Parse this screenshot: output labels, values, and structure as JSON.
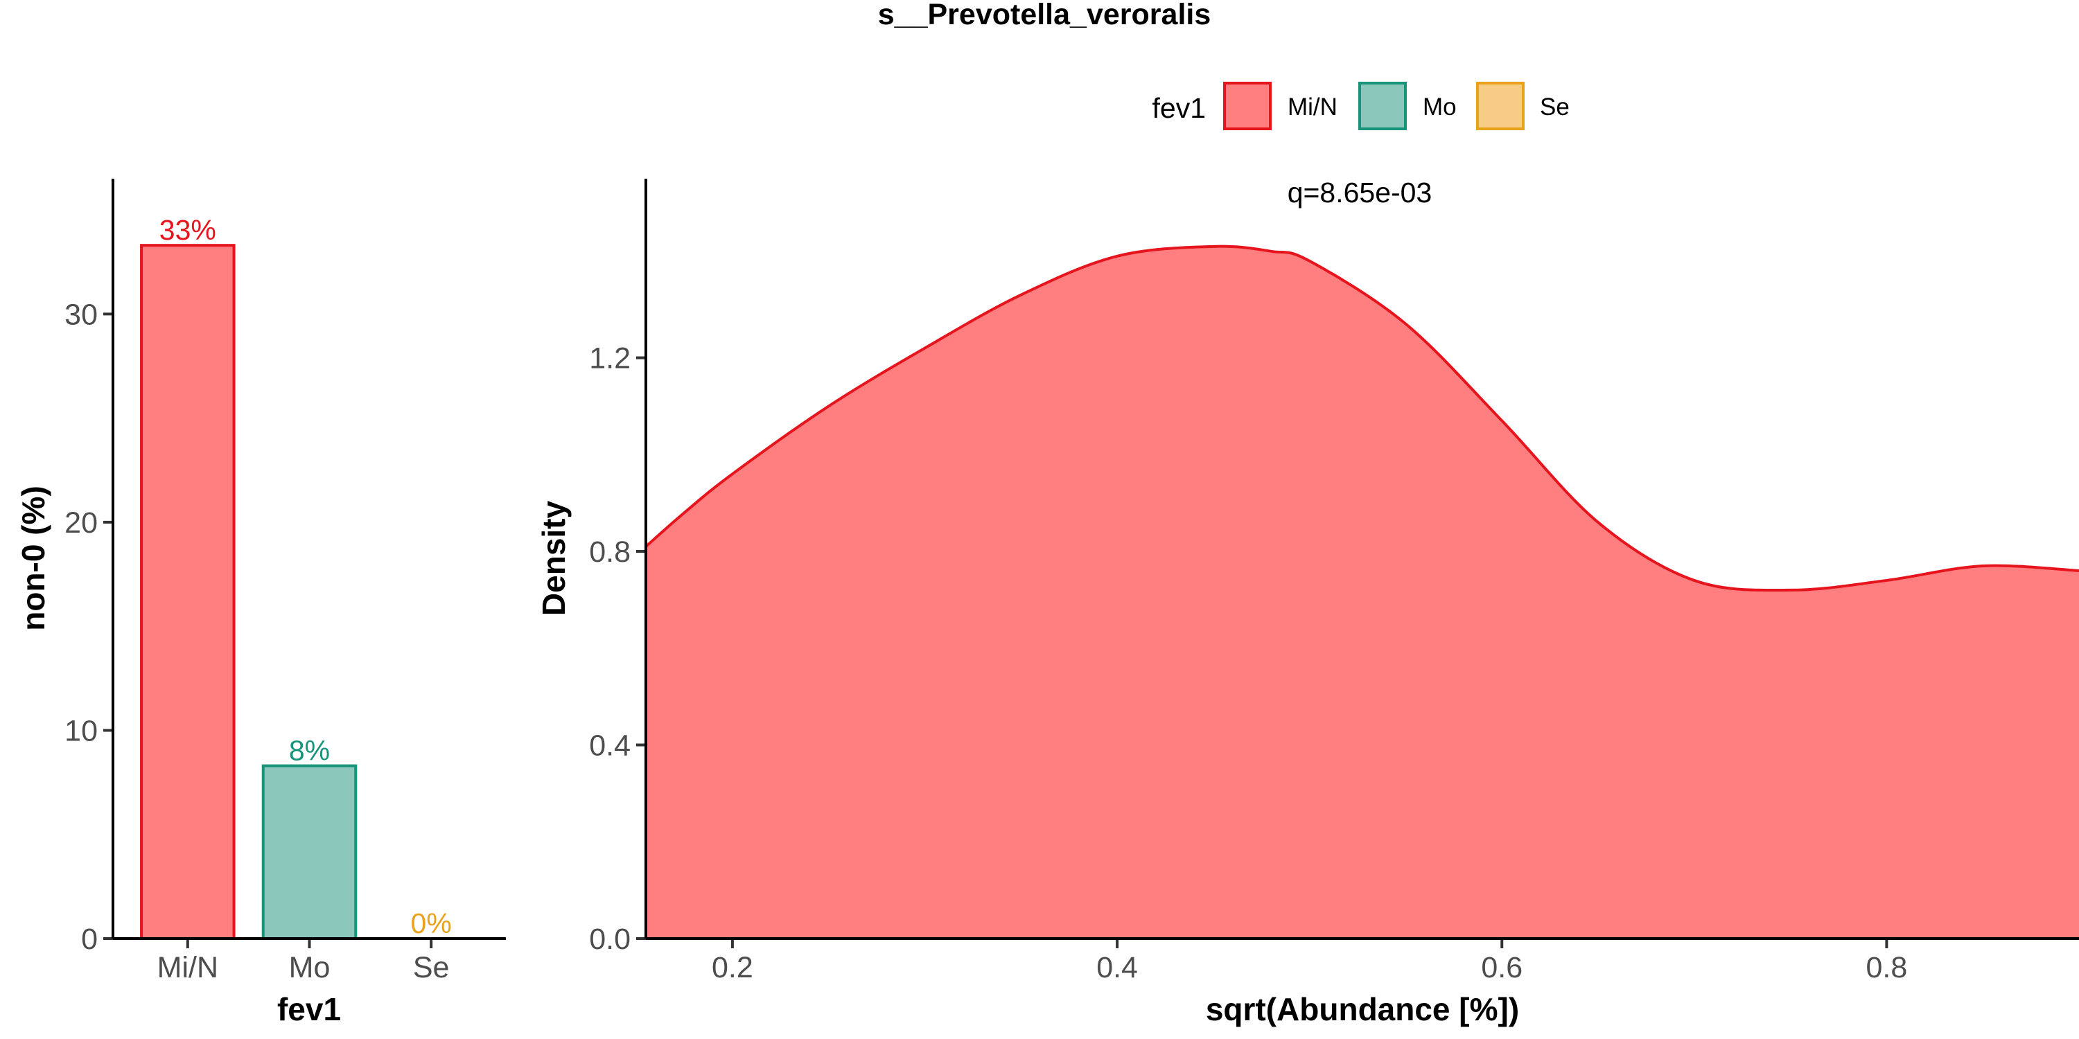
{
  "figure": {
    "title": "s__Prevotella_veroralis"
  },
  "legend": {
    "title": "fev1",
    "placement": "top",
    "items": [
      {
        "label": "Mi/N",
        "fill": "#ff7f81",
        "stroke": "#e6141c"
      },
      {
        "label": "Mo",
        "fill": "#8bc8bb",
        "stroke": "#17947a"
      },
      {
        "label": "Se",
        "fill": "#f7cc85",
        "stroke": "#e8a21c"
      }
    ]
  },
  "chart_data": [
    {
      "type": "bar",
      "xlabel": "fev1",
      "ylabel": "non-0 (%)",
      "categories": [
        "Mi/N",
        "Mo",
        "Se"
      ],
      "values": [
        33.3,
        8.3,
        0
      ],
      "labels": [
        "33%",
        "8%",
        "0%"
      ],
      "ylim": [
        0,
        36.5
      ],
      "yticks": [
        0,
        10,
        20,
        30
      ],
      "ytick_labels": [
        "0",
        "10",
        "20",
        "30"
      ],
      "colors": {
        "fill": [
          "#ff7f81",
          "#8bc8bb",
          "#f7cc85"
        ],
        "stroke": [
          "#e6141c",
          "#17947a",
          "#e8a21c"
        ]
      },
      "grid": false
    },
    {
      "type": "area",
      "xlabel": "sqrt(Abundance [%])",
      "ylabel": "Density",
      "annotation": "q=8.65e-03",
      "xlim": [
        0.155,
        0.9
      ],
      "ylim": [
        0,
        1.57
      ],
      "xticks": [
        0.2,
        0.4,
        0.6,
        0.8
      ],
      "xtick_labels": [
        "0.2",
        "0.4",
        "0.6",
        "0.8"
      ],
      "yticks": [
        0,
        0.4,
        0.8,
        1.2
      ],
      "ytick_labels": [
        "0.0",
        "0.4",
        "0.8",
        "1.2"
      ],
      "series": [
        {
          "name": "Mi/N",
          "fill": "#ff7f81",
          "stroke": "#e6141c",
          "x": [
            0.155,
            0.175,
            0.2,
            0.25,
            0.3,
            0.35,
            0.4,
            0.45,
            0.48,
            0.5,
            0.55,
            0.6,
            0.65,
            0.7,
            0.75,
            0.8,
            0.85,
            0.9
          ],
          "y": [
            0.81,
            0.88,
            0.96,
            1.1,
            1.22,
            1.33,
            1.41,
            1.43,
            1.42,
            1.4,
            1.27,
            1.07,
            0.86,
            0.74,
            0.72,
            0.74,
            0.77,
            0.76
          ]
        }
      ],
      "grid": false
    }
  ]
}
